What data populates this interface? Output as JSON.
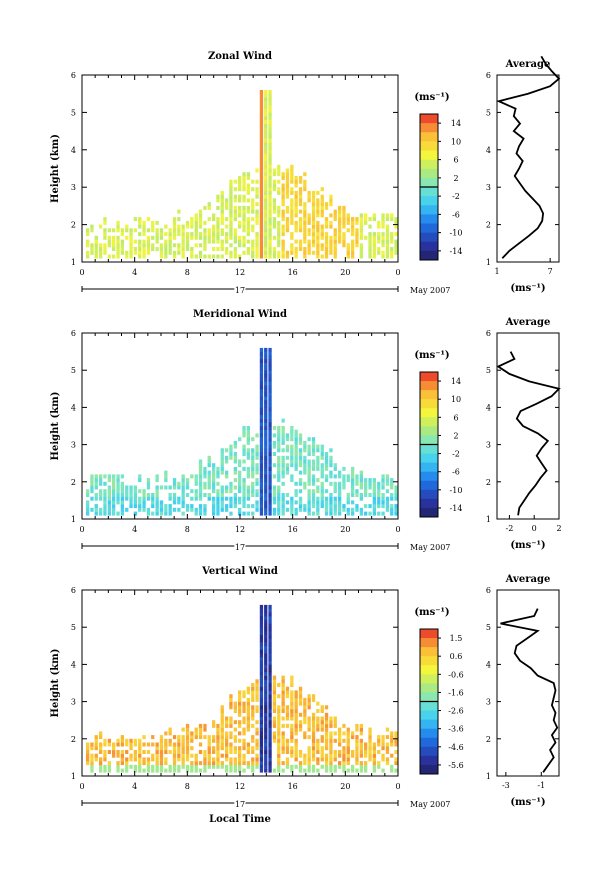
{
  "figure": {
    "xlabel": "Local Time",
    "date_label": "May 2007",
    "day_label": "17",
    "avg_title": "Average",
    "unit_label": "(ms⁻¹)"
  },
  "chart_data": [
    {
      "type": "heatmap",
      "title": "Zonal Wind",
      "ylabel": "Height (km)",
      "xlabel": "",
      "x_ticks": [
        "0",
        "4",
        "8",
        "12",
        "16",
        "20",
        "0"
      ],
      "y_ticks": [
        "1",
        "2",
        "3",
        "4",
        "5",
        "6"
      ],
      "xlim": [
        0,
        24
      ],
      "ylim": [
        1,
        6
      ],
      "colorbar": {
        "label": "(ms⁻¹)",
        "ticks": [
          "14",
          "10",
          "6",
          "2",
          "-2",
          "-6",
          "-10",
          "-14"
        ],
        "range": [
          -16,
          16
        ]
      },
      "description_values": {
        "typical_range": [
          -2,
          12
        ],
        "max": 14
      },
      "profile": {
        "xlim": [
          1,
          8
        ],
        "x_ticks": [
          "1",
          "7"
        ],
        "xlabel": "(ms⁻¹)",
        "heights": [
          1.1,
          1.3,
          1.5,
          1.7,
          1.9,
          2.1,
          2.3,
          2.5,
          2.7,
          2.9,
          3.1,
          3.3,
          3.5,
          3.7,
          3.9,
          4.1,
          4.3,
          4.5,
          4.7,
          4.9,
          5.1,
          5.3,
          5.5,
          5.7,
          5.9,
          6.1,
          6.3,
          6.5
        ],
        "values": [
          1.6,
          2.4,
          3.5,
          4.6,
          5.6,
          6.1,
          6.2,
          5.8,
          5.0,
          4.2,
          3.6,
          3.0,
          3.5,
          3.9,
          3.2,
          3.5,
          4.0,
          2.9,
          3.6,
          2.9,
          3.1,
          1.2,
          4.5,
          7.0,
          8.0,
          7.2,
          6.5,
          6.0
        ]
      }
    },
    {
      "type": "heatmap",
      "title": "Meridional Wind",
      "ylabel": "Height (km)",
      "xlabel": "",
      "x_ticks": [
        "0",
        "4",
        "8",
        "12",
        "16",
        "20",
        "0"
      ],
      "y_ticks": [
        "1",
        "2",
        "3",
        "4",
        "5",
        "6"
      ],
      "xlim": [
        0,
        24
      ],
      "ylim": [
        1,
        6
      ],
      "colorbar": {
        "label": "(ms⁻¹)",
        "ticks": [
          "14",
          "10",
          "6",
          "2",
          "-2",
          "-6",
          "-10",
          "-14"
        ],
        "range": [
          -16,
          16
        ]
      },
      "description_values": {
        "typical_range": [
          -6,
          4
        ],
        "max": 14
      },
      "profile": {
        "xlim": [
          -3,
          2
        ],
        "x_ticks": [
          "-2",
          "0",
          "2"
        ],
        "xlabel": "(ms⁻¹)",
        "heights": [
          1.1,
          1.3,
          1.5,
          1.7,
          1.9,
          2.1,
          2.3,
          2.5,
          2.7,
          2.9,
          3.1,
          3.3,
          3.5,
          3.7,
          3.9,
          4.1,
          4.3,
          4.5,
          4.7,
          4.9,
          5.1,
          5.3,
          5.5
        ],
        "values": [
          -1.3,
          -1.2,
          -0.8,
          -0.4,
          0.1,
          0.5,
          1.0,
          0.6,
          0.2,
          0.6,
          1.1,
          0.3,
          -0.9,
          -1.4,
          -1.1,
          0.2,
          1.4,
          2.0,
          -0.4,
          -2.0,
          -2.9,
          -1.6,
          -1.9
        ]
      }
    },
    {
      "type": "heatmap",
      "title": "Vertical Wind",
      "ylabel": "Height (km)",
      "xlabel": "Local Time",
      "x_ticks": [
        "0",
        "4",
        "8",
        "12",
        "16",
        "20",
        "0"
      ],
      "y_ticks": [
        "1",
        "2",
        "3",
        "4",
        "5",
        "6"
      ],
      "xlim": [
        0,
        24
      ],
      "ylim": [
        1,
        6
      ],
      "colorbar": {
        "label": "(ms⁻¹)",
        "ticks": [
          "1.5",
          "0.6",
          "-0.6",
          "-1.6",
          "-2.6",
          "-3.6",
          "-4.6",
          "-5.6"
        ],
        "range": [
          -6.0,
          2.0
        ]
      },
      "description_values": {
        "typical_range": [
          -1.0,
          1.5
        ],
        "min": -5.6
      },
      "profile": {
        "xlim": [
          -3.5,
          0
        ],
        "x_ticks": [
          "-3",
          "-1"
        ],
        "xlabel": "(ms⁻¹)",
        "heights": [
          1.1,
          1.3,
          1.5,
          1.7,
          1.9,
          2.1,
          2.3,
          2.5,
          2.7,
          2.9,
          3.1,
          3.3,
          3.5,
          3.7,
          3.9,
          4.1,
          4.3,
          4.5,
          4.7,
          4.9,
          5.1,
          5.3,
          5.5
        ],
        "values": [
          -0.9,
          -0.6,
          -0.3,
          -0.5,
          -0.2,
          -0.4,
          -0.1,
          -0.3,
          -0.2,
          -0.4,
          -0.3,
          -0.2,
          -0.3,
          -1.2,
          -1.6,
          -2.2,
          -2.5,
          -2.4,
          -1.8,
          -1.2,
          -3.3,
          -1.4,
          -1.2
        ]
      }
    }
  ]
}
